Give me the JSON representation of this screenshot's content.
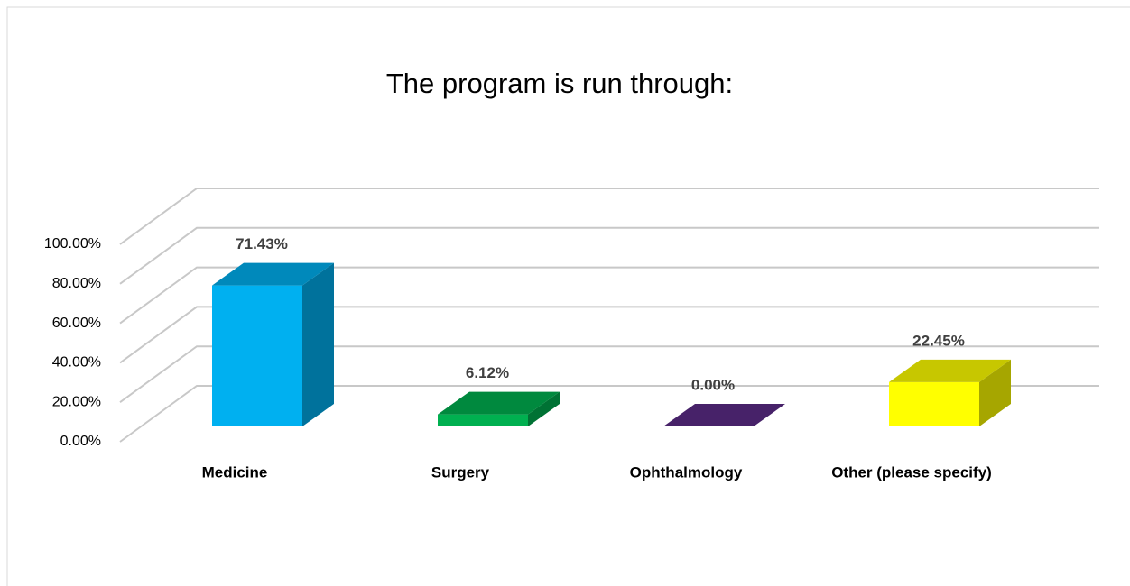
{
  "chart_data": {
    "type": "bar3d",
    "title": "The program is run through:",
    "categories": [
      "Medicine",
      "Surgery",
      "Ophthalmology",
      "Other (please specify)"
    ],
    "values": [
      71.43,
      6.12,
      0.0,
      22.45
    ],
    "value_labels": [
      "71.43%",
      "6.12%",
      "0.00%",
      "22.45%"
    ],
    "colors": [
      "#00b0f0",
      "#00b050",
      "#5b2c86",
      "#ffff00"
    ],
    "ylim": [
      0,
      100
    ],
    "yticks": [
      {
        "value": 0,
        "label": "0.00%"
      },
      {
        "value": 20,
        "label": "20.00%"
      },
      {
        "value": 40,
        "label": "40.00%"
      },
      {
        "value": 60,
        "label": "60.00%"
      },
      {
        "value": 80,
        "label": "80.00%"
      },
      {
        "value": 100,
        "label": "100.00%"
      }
    ],
    "grid": true
  }
}
